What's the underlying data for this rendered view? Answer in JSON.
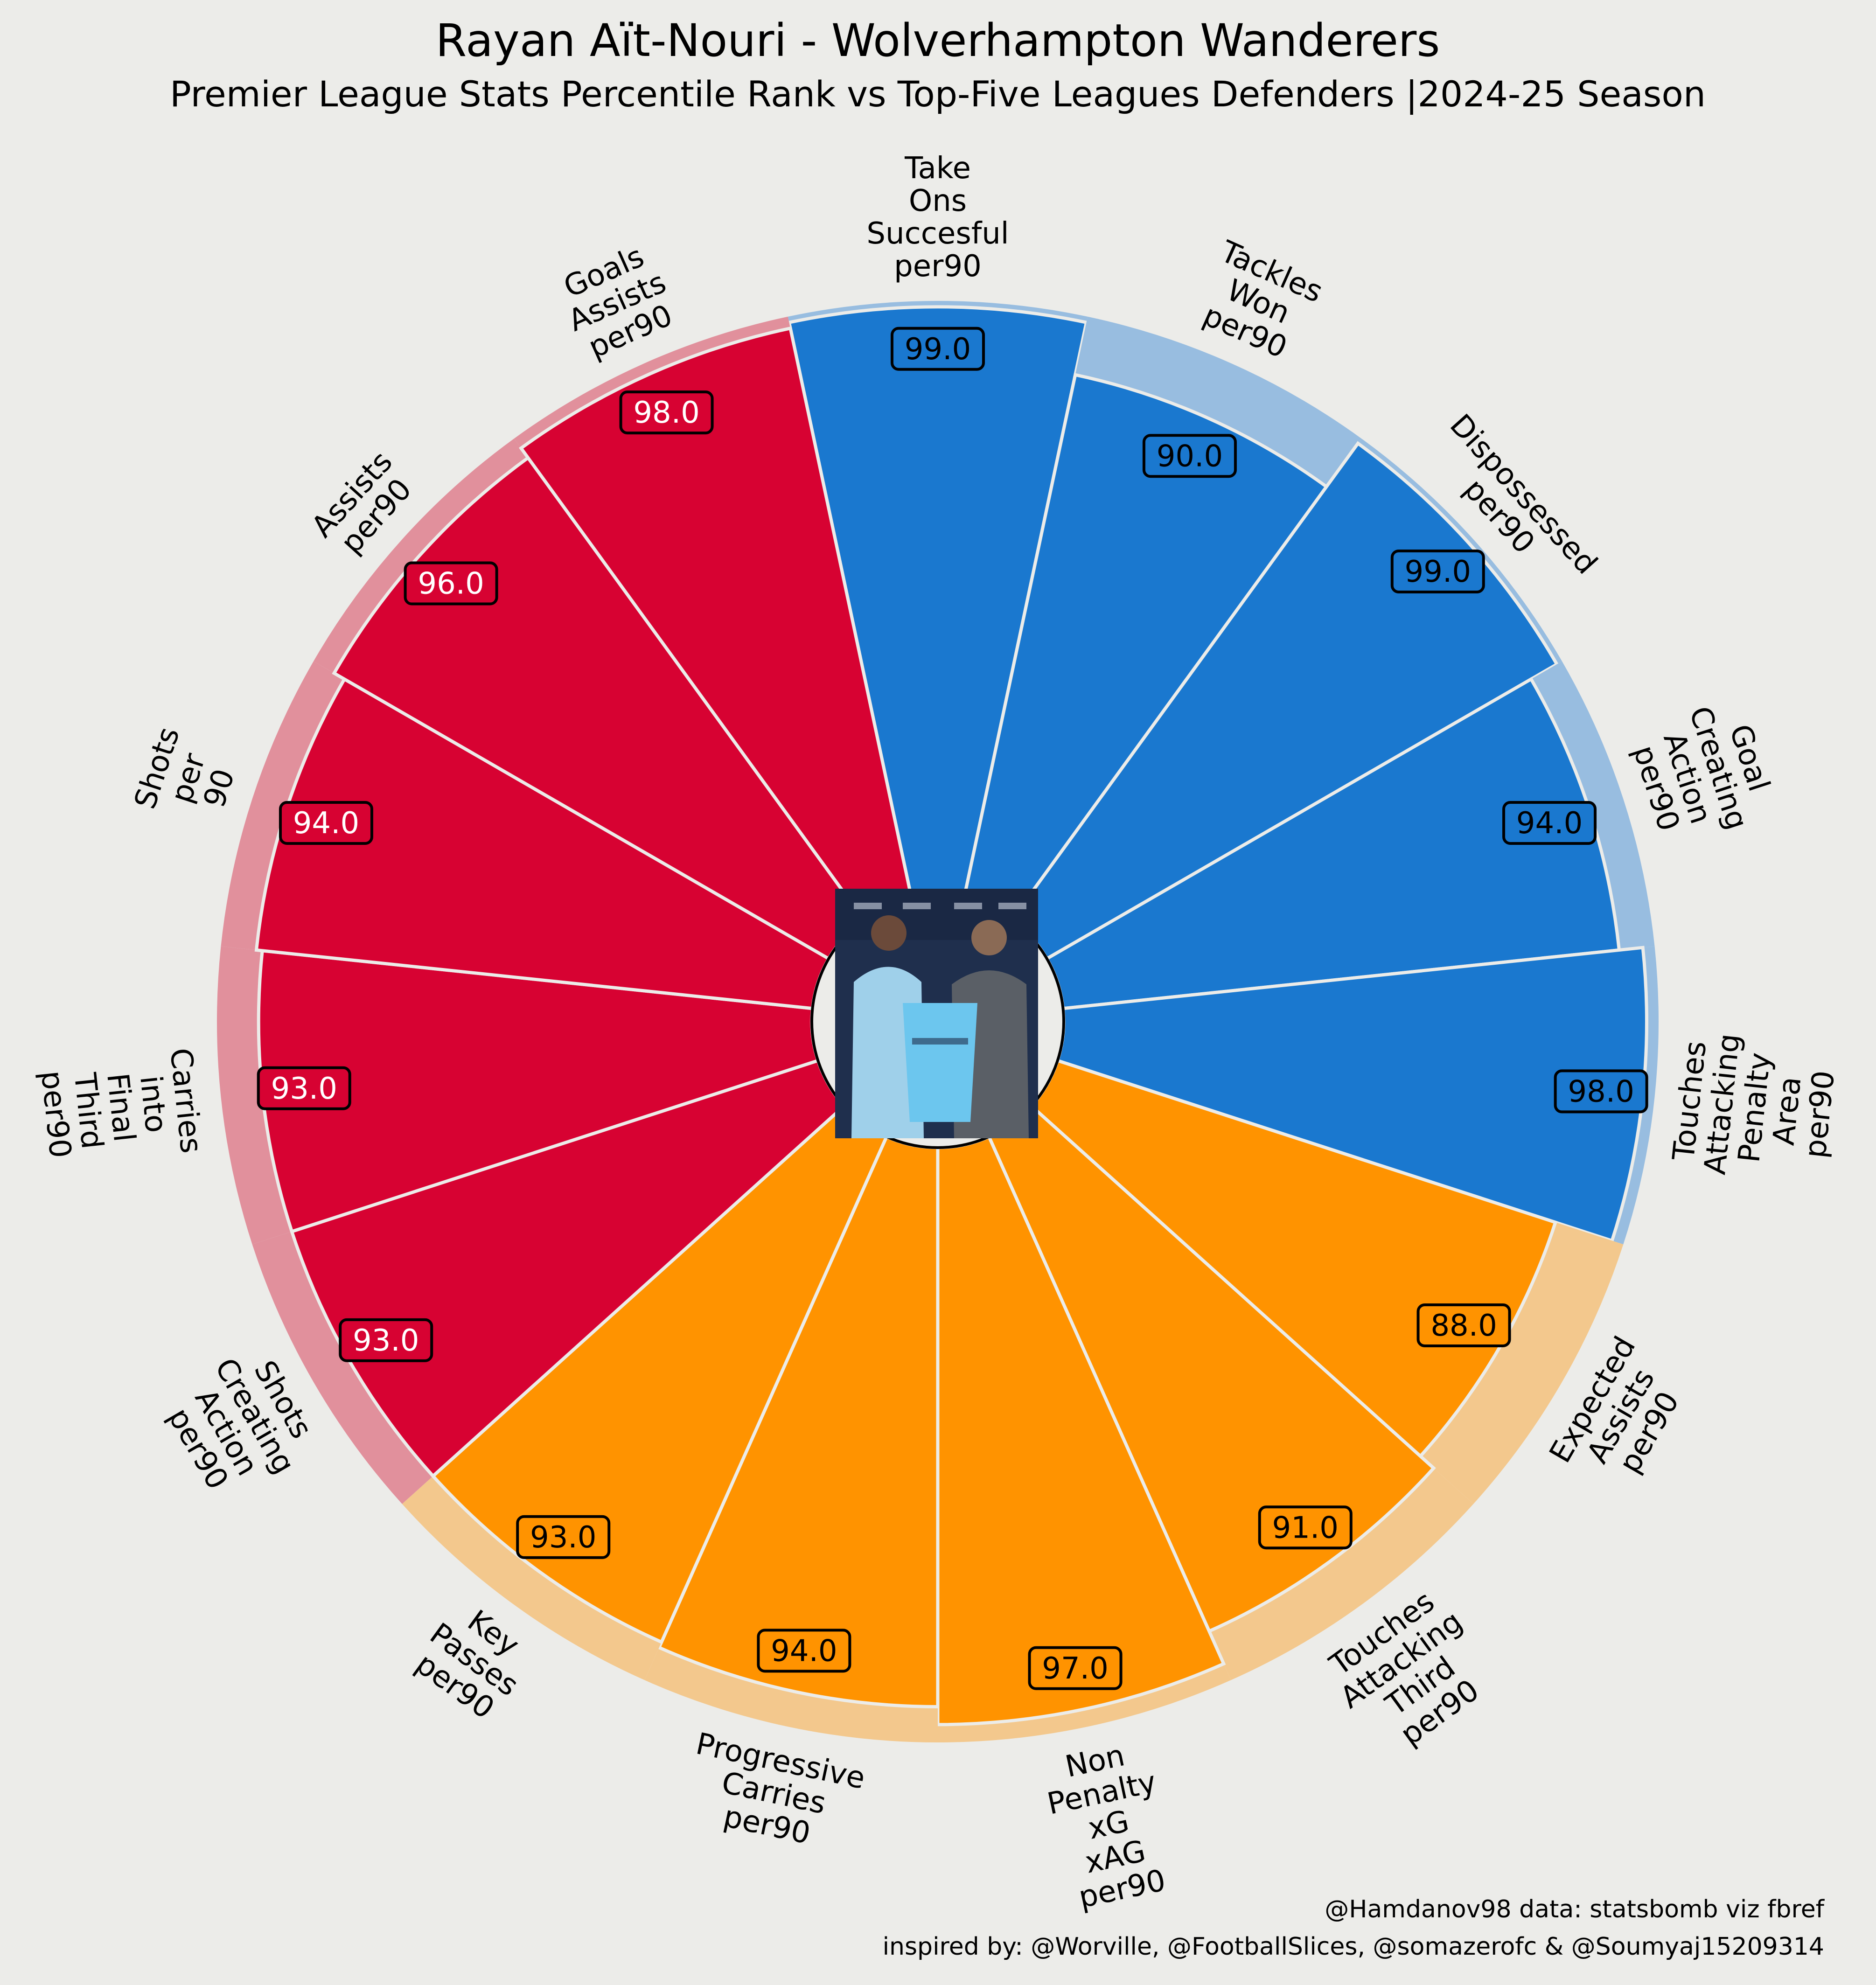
{
  "chart_data": {
    "type": "radial-bar",
    "title": "Rayan Aït-Nouri - Wolverhampton Wanderers",
    "subtitle": "Premier League Stats Percentile Rank vs Top-Five Leagues Defenders |2024-25 Season",
    "credit_line_1": "@Hamdanov98 data: statsbomb viz fbref",
    "credit_line_2": "inspired by: @Worville, @FootballSlices, @somazerofc & @Soumyaj15209314",
    "range": [
      0,
      100
    ],
    "center_image": "player-photo",
    "groups": [
      {
        "id": "attacking",
        "fill": "#d70232",
        "shade": "#e1909c",
        "text_color": "#ffffff"
      },
      {
        "id": "possession",
        "fill": "#1a78cf",
        "shade": "#98bde0",
        "text_color": "#000000"
      },
      {
        "id": "passing",
        "fill": "#ff9300",
        "shade": "#f3c88d",
        "text_color": "#000000"
      }
    ],
    "metrics": [
      {
        "label": "Take Ons Succesful per90",
        "value": 99,
        "display": "99.0",
        "group": "possession"
      },
      {
        "label": "Tackles Won per90",
        "value": 90,
        "display": "90.0",
        "group": "possession"
      },
      {
        "label": "Dispossessed per90",
        "value": 99,
        "display": "99.0",
        "group": "possession"
      },
      {
        "label": "Goal Creating Action per90",
        "value": 94,
        "display": "94.0",
        "group": "possession"
      },
      {
        "label": "Touches Attacking Penalty Area per90",
        "value": 98,
        "display": "98.0",
        "group": "possession"
      },
      {
        "label": "Expected Assists per90",
        "value": 88,
        "display": "88.0",
        "group": "passing"
      },
      {
        "label": "Touches Attacking Third per90",
        "value": 91,
        "display": "91.0",
        "group": "passing"
      },
      {
        "label": "Non Penalty xG xAG per90",
        "value": 97,
        "display": "97.0",
        "group": "passing"
      },
      {
        "label": "Progressive Carries per90",
        "value": 94,
        "display": "94.0",
        "group": "passing"
      },
      {
        "label": "Key Passes per90",
        "value": 93,
        "display": "93.0",
        "group": "passing"
      },
      {
        "label": "Shots Creating Action per90",
        "value": 93,
        "display": "93.0",
        "group": "attacking"
      },
      {
        "label": "Carries into Final Third per90",
        "value": 93,
        "display": "93.0",
        "group": "attacking"
      },
      {
        "label": "Shots per 90",
        "value": 94,
        "display": "94.0",
        "group": "attacking"
      },
      {
        "label": "Assists per90",
        "value": 96,
        "display": "96.0",
        "group": "attacking"
      },
      {
        "label": "Goals Assists per90",
        "value": 98,
        "display": "98.0",
        "group": "attacking"
      }
    ]
  }
}
